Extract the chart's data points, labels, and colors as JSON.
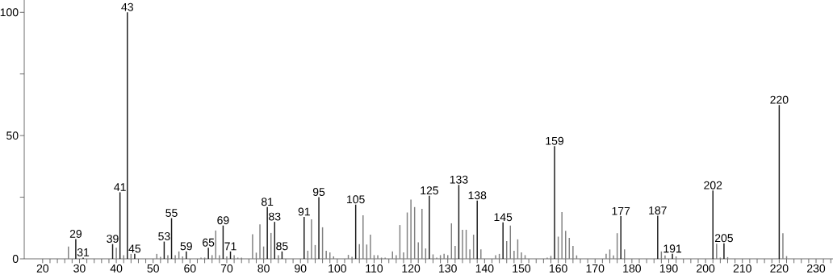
{
  "chart_data": {
    "type": "bar",
    "series": [
      {
        "color": "#1a1a1a",
        "x": [
          29,
          31,
          39,
          41,
          43,
          45,
          53,
          55,
          59,
          65,
          69,
          71,
          81,
          83,
          85,
          91,
          95,
          105,
          125,
          133,
          138,
          145,
          159,
          177,
          187,
          191,
          202,
          205,
          220
        ],
        "values": [
          8,
          0.5,
          6,
          27,
          100,
          2,
          7,
          16.5,
          3,
          4.5,
          13.5,
          3,
          21,
          15,
          3,
          17,
          25,
          22,
          25.6,
          30,
          23.6,
          14.8,
          45.7,
          17.3,
          17.5,
          2,
          27.7,
          6.3,
          62.4
        ]
      },
      {
        "color": "#808080",
        "x": [
          27,
          40,
          42,
          44,
          51,
          52,
          54,
          56,
          57,
          58,
          63,
          64,
          66,
          67,
          68,
          70,
          72,
          73,
          74,
          77,
          78,
          79,
          80,
          82,
          84,
          92,
          93,
          94,
          96,
          97,
          98,
          99,
          103,
          104,
          106,
          107,
          108,
          109,
          110,
          111,
          112,
          113,
          115,
          116,
          117,
          118,
          119,
          120,
          121,
          122,
          123,
          124,
          126,
          127,
          128,
          129,
          130,
          131,
          132,
          134,
          135,
          136,
          137,
          139,
          143,
          144,
          146,
          147,
          148,
          149,
          150,
          151,
          157,
          158,
          160,
          161,
          162,
          163,
          164,
          165,
          173,
          174,
          175,
          176,
          178,
          188,
          189,
          192,
          203,
          204,
          206,
          221,
          222
        ],
        "values": [
          5,
          4.5,
          1.5,
          2,
          2,
          0.8,
          1.5,
          1.5,
          3,
          1,
          0.5,
          0.5,
          1.5,
          11.5,
          1.5,
          1,
          1.5,
          0.5,
          0.5,
          10,
          2.5,
          14,
          5,
          10.5,
          1.5,
          3.3,
          16,
          5.6,
          12.8,
          3.3,
          2.6,
          1,
          1.6,
          0.8,
          6,
          17.7,
          5.8,
          9.8,
          1.5,
          1.5,
          0.5,
          0.5,
          3,
          1.5,
          13.7,
          2.6,
          18.8,
          24,
          21,
          6.7,
          20.3,
          4.2,
          1.8,
          0.5,
          1.5,
          2,
          1.5,
          14.4,
          5.2,
          11.8,
          11.8,
          3.8,
          9.8,
          3.8,
          1.5,
          2,
          7.2,
          13.5,
          3.3,
          7.9,
          2.6,
          1.5,
          0.5,
          1.2,
          9,
          19,
          11.4,
          8.5,
          5.2,
          1.4,
          2,
          3.8,
          1.4,
          10.4,
          3.8,
          3,
          1.4,
          1,
          6.1,
          0.5,
          0.7,
          10.4,
          1.1
        ]
      }
    ],
    "annotations": [
      {
        "text": "29",
        "x": 29,
        "y": 8
      },
      {
        "text": "31",
        "x": 31,
        "y": 0.5
      },
      {
        "text": "39",
        "x": 39,
        "y": 6
      },
      {
        "text": "41",
        "x": 41,
        "y": 27
      },
      {
        "text": "43",
        "x": 43,
        "y": 100
      },
      {
        "text": "45",
        "x": 45,
        "y": 2
      },
      {
        "text": "53",
        "x": 53,
        "y": 7
      },
      {
        "text": "55",
        "x": 55,
        "y": 16.5
      },
      {
        "text": "59",
        "x": 59,
        "y": 3
      },
      {
        "text": "65",
        "x": 65,
        "y": 4.5
      },
      {
        "text": "69",
        "x": 69,
        "y": 13.5
      },
      {
        "text": "71",
        "x": 71,
        "y": 3
      },
      {
        "text": "81",
        "x": 81,
        "y": 21
      },
      {
        "text": "83",
        "x": 83,
        "y": 15
      },
      {
        "text": "85",
        "x": 85,
        "y": 3
      },
      {
        "text": "91",
        "x": 91,
        "y": 17
      },
      {
        "text": "95",
        "x": 95,
        "y": 25
      },
      {
        "text": "105",
        "x": 105,
        "y": 22
      },
      {
        "text": "125",
        "x": 125,
        "y": 25.6
      },
      {
        "text": "133",
        "x": 133,
        "y": 30
      },
      {
        "text": "138",
        "x": 138,
        "y": 23.6
      },
      {
        "text": "145",
        "x": 145,
        "y": 14.8
      },
      {
        "text": "159",
        "x": 159,
        "y": 45.7
      },
      {
        "text": "177",
        "x": 177,
        "y": 17.3
      },
      {
        "text": "187",
        "x": 187,
        "y": 17.5
      },
      {
        "text": "191",
        "x": 191,
        "y": 2
      },
      {
        "text": "202",
        "x": 202,
        "y": 27.7
      },
      {
        "text": "205",
        "x": 205,
        "y": 6.3
      },
      {
        "text": "220",
        "x": 220,
        "y": 62.4
      }
    ],
    "xlim": [
      15,
      234.6
    ],
    "ylim": [
      0,
      105
    ],
    "xticks": [
      20,
      {
        "value": 22,
        "label": null
      },
      {
        "value": 24,
        "label": null
      },
      {
        "value": 26,
        "label": null
      },
      {
        "value": 28,
        "label": null
      },
      30,
      {
        "value": 32,
        "label": null
      },
      {
        "value": 34,
        "label": null
      },
      {
        "value": 36,
        "label": null
      },
      {
        "value": 38,
        "label": null
      },
      40,
      {
        "value": 42,
        "label": null
      },
      {
        "value": 44,
        "label": null
      },
      {
        "value": 46,
        "label": null
      },
      {
        "value": 48,
        "label": null
      },
      50,
      {
        "value": 52,
        "label": null
      },
      {
        "value": 54,
        "label": null
      },
      {
        "value": 56,
        "label": null
      },
      {
        "value": 58,
        "label": null
      },
      60,
      {
        "value": 62,
        "label": null
      },
      {
        "value": 64,
        "label": null
      },
      {
        "value": 66,
        "label": null
      },
      {
        "value": 68,
        "label": null
      },
      70,
      {
        "value": 72,
        "label": null
      },
      {
        "value": 74,
        "label": null
      },
      {
        "value": 76,
        "label": null
      },
      {
        "value": 78,
        "label": null
      },
      80,
      {
        "value": 82,
        "label": null
      },
      {
        "value": 84,
        "label": null
      },
      {
        "value": 86,
        "label": null
      },
      {
        "value": 88,
        "label": null
      },
      90,
      {
        "value": 92,
        "label": null
      },
      {
        "value": 94,
        "label": null
      },
      {
        "value": 96,
        "label": null
      },
      {
        "value": 98,
        "label": null
      },
      100,
      {
        "value": 102,
        "label": null
      },
      {
        "value": 104,
        "label": null
      },
      {
        "value": 106,
        "label": null
      },
      {
        "value": 108,
        "label": null
      },
      110,
      {
        "value": 112,
        "label": null
      },
      {
        "value": 114,
        "label": null
      },
      {
        "value": 116,
        "label": null
      },
      {
        "value": 118,
        "label": null
      },
      120,
      {
        "value": 122,
        "label": null
      },
      {
        "value": 124,
        "label": null
      },
      {
        "value": 126,
        "label": null
      },
      {
        "value": 128,
        "label": null
      },
      130,
      {
        "value": 132,
        "label": null
      },
      {
        "value": 134,
        "label": null
      },
      {
        "value": 136,
        "label": null
      },
      {
        "value": 138,
        "label": null
      },
      140,
      {
        "value": 142,
        "label": null
      },
      {
        "value": 144,
        "label": null
      },
      {
        "value": 146,
        "label": null
      },
      {
        "value": 148,
        "label": null
      },
      150,
      {
        "value": 152,
        "label": null
      },
      {
        "value": 154,
        "label": null
      },
      {
        "value": 156,
        "label": null
      },
      {
        "value": 158,
        "label": null
      },
      160,
      {
        "value": 162,
        "label": null
      },
      {
        "value": 164,
        "label": null
      },
      {
        "value": 166,
        "label": null
      },
      {
        "value": 168,
        "label": null
      },
      170,
      {
        "value": 172,
        "label": null
      },
      {
        "value": 174,
        "label": null
      },
      {
        "value": 176,
        "label": null
      },
      {
        "value": 178,
        "label": null
      },
      180,
      {
        "value": 182,
        "label": null
      },
      {
        "value": 184,
        "label": null
      },
      {
        "value": 186,
        "label": null
      },
      {
        "value": 188,
        "label": null
      },
      190,
      {
        "value": 192,
        "label": null
      },
      {
        "value": 194,
        "label": null
      },
      {
        "value": 196,
        "label": null
      },
      {
        "value": 198,
        "label": null
      },
      200,
      {
        "value": 202,
        "label": null
      },
      {
        "value": 204,
        "label": null
      },
      {
        "value": 206,
        "label": null
      },
      {
        "value": 208,
        "label": null
      },
      210,
      {
        "value": 212,
        "label": null
      },
      {
        "value": 214,
        "label": null
      },
      {
        "value": 216,
        "label": null
      },
      {
        "value": 218,
        "label": null
      },
      220,
      {
        "value": 222,
        "label": null
      },
      {
        "value": 224,
        "label": null
      },
      {
        "value": 226,
        "label": null
      },
      {
        "value": 228,
        "label": null
      },
      230,
      {
        "value": 232,
        "label": null
      },
      {
        "value": 234,
        "label": null
      }
    ],
    "yticks": [
      0,
      {
        "value": 25,
        "label": null
      },
      50,
      {
        "value": 75,
        "label": null
      },
      100
    ]
  }
}
